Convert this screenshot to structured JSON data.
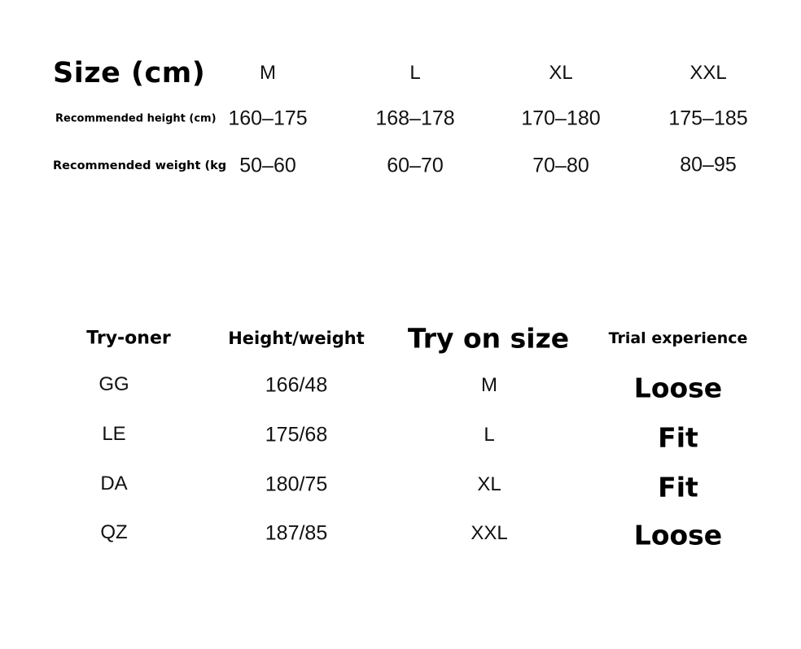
{
  "size_table": {
    "header_label": "Size (cm)",
    "sizes": [
      "M",
      "L",
      "XL",
      "XXL"
    ],
    "rows": [
      {
        "label": "Recommended height (cm)",
        "values": [
          "160–175",
          "168–178",
          "170–180",
          "175–185"
        ]
      },
      {
        "label": "Recommended weight (kg",
        "values": [
          "50–60",
          "60–70",
          "70–80",
          "80–95"
        ]
      }
    ]
  },
  "tryon_table": {
    "headers": [
      "Try-oner",
      "Height/weight",
      "Try on size",
      "Trial experience"
    ],
    "rows": [
      [
        "GG",
        "166/48",
        "M",
        "Loose"
      ],
      [
        "LE",
        "175/68",
        "L",
        "Fit"
      ],
      [
        "DA",
        "180/75",
        "XL",
        "Fit"
      ],
      [
        "QZ",
        "187/85",
        "XXL",
        "Loose"
      ]
    ]
  }
}
